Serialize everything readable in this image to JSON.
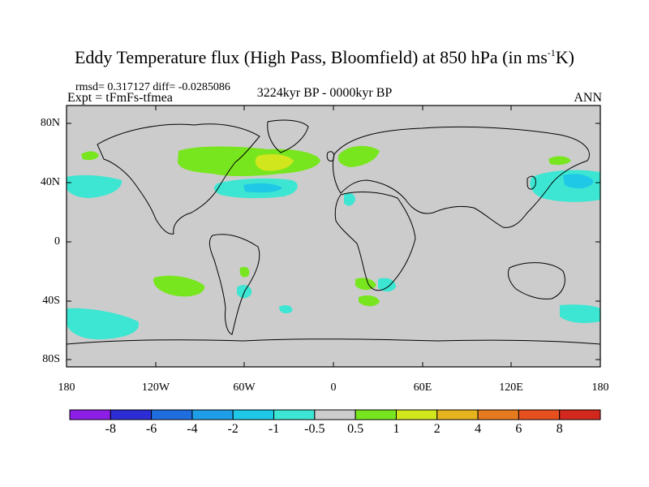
{
  "title": {
    "main": "Eddy Temperature flux (High Pass, Bloomfield) at 850 hPa (in ms",
    "sup": "-1",
    "end": "K)"
  },
  "stats": "rmsd= 0.317127  diff= -0.0285086",
  "expt": "Expt = tFmFs-tfmea",
  "period": "3224kyr BP - 0000kyr BP",
  "season": "ANN",
  "axes": {
    "lat_labels": [
      "80N",
      "40N",
      "0",
      "40S",
      "80S"
    ],
    "lon_labels": [
      "180",
      "120W",
      "60W",
      "0",
      "60E",
      "120E",
      "180"
    ]
  },
  "colorbar": {
    "labels": [
      "-8",
      "-6",
      "-4",
      "-2",
      "-1",
      "-0.5",
      "0.5",
      "1",
      "2",
      "4",
      "6",
      "8"
    ],
    "colors": [
      "#8c1ee6",
      "#2d2dd6",
      "#1f6ee0",
      "#1e9ee6",
      "#1ec8e6",
      "#3ce6d2",
      "#cccccc",
      "#78e61e",
      "#d2e61e",
      "#e6b41e",
      "#e67a1e",
      "#e6501e",
      "#d2281e"
    ]
  },
  "colors": {
    "background": "#cccccc",
    "land_outline": "#000000"
  }
}
